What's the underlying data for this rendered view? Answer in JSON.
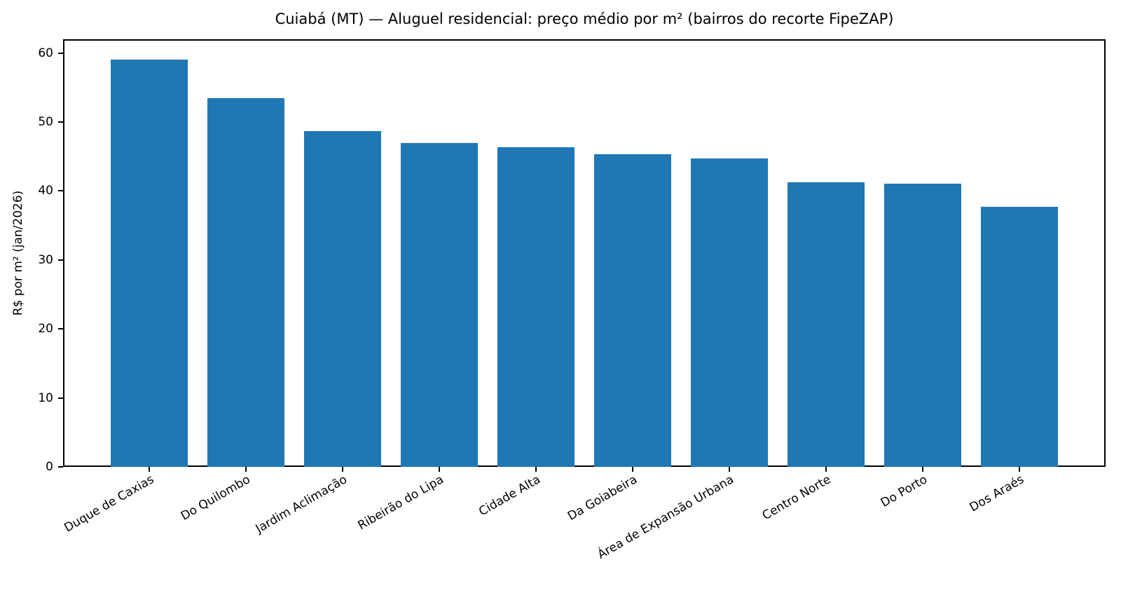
{
  "chart_data": {
    "type": "bar",
    "title": "Cuiabá (MT) — Aluguel residencial: preço médio por m² (bairros do recorte FipeZAP)",
    "xlabel": "",
    "ylabel": "R$ por m² (jan/2026)",
    "categories": [
      "Duque de Caxias",
      "Do Quilombo",
      "Jardim Aclimação",
      "Ribeirão do Lipa",
      "Cidade Alta",
      "Da Goiabeira",
      "Área de Expansão Urbana",
      "Centro Norte",
      "Do Porto",
      "Dos Araés"
    ],
    "values": [
      59.1,
      53.5,
      48.7,
      47.0,
      46.3,
      45.3,
      44.7,
      41.3,
      41.1,
      37.7
    ],
    "yticks": [
      0,
      10,
      20,
      30,
      40,
      50,
      60
    ],
    "ylim": [
      0,
      62
    ],
    "bar_color": "#1f77b4",
    "grid": false,
    "legend": null,
    "x_tick_rotation_deg": 30
  }
}
